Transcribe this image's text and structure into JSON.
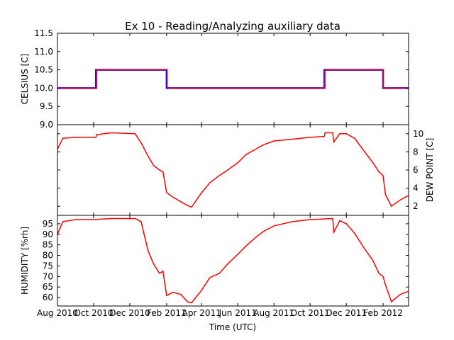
{
  "chart_data": {
    "type": "line",
    "title": "Ex 10 - Reading/Analyzing auxiliary data",
    "xlabel": "Time (UTC)",
    "x_range": [
      "2010-08-01",
      "2012-03-15"
    ],
    "x_ticks": [
      "Aug 2010",
      "Oct 2010",
      "Dec 2010",
      "Feb 2011",
      "Apr 2011",
      "Jun 2011",
      "Aug 2011",
      "Oct 2011",
      "Dec 2011",
      "Feb 2012"
    ],
    "panels": [
      {
        "ylabel": "CELSIUS [C]",
        "ylim": [
          9.0,
          11.5
        ],
        "y_ticks": [
          "9.0",
          "9.5",
          "10.0",
          "10.5",
          "11.0",
          "11.5"
        ],
        "y_axis_side": "left",
        "series": [
          {
            "color": "#0000ff",
            "x": [
              "2010-08-01",
              "2010-10-05",
              "2010-10-05",
              "2011-02-01",
              "2011-02-01",
              "2011-10-25",
              "2011-10-25",
              "2012-02-01",
              "2012-02-01",
              "2012-03-15"
            ],
            "y": [
              10.0,
              10.0,
              10.5,
              10.5,
              10.0,
              10.0,
              10.5,
              10.5,
              10.0,
              10.0
            ]
          },
          {
            "color": "#ff0000",
            "x": [
              "2010-08-01",
              "2010-10-06",
              "2010-10-06",
              "2011-02-02",
              "2011-02-02",
              "2011-10-26",
              "2011-10-26",
              "2012-02-01",
              "2012-02-01",
              "2012-03-15"
            ],
            "y": [
              10.0,
              10.0,
              10.5,
              10.5,
              10.0,
              10.0,
              10.5,
              10.5,
              10.0,
              10.0
            ]
          }
        ]
      },
      {
        "ylabel": "DEW POINT [C]",
        "ylim": [
          1.0,
          11.0
        ],
        "y_ticks": [
          "2",
          "4",
          "6",
          "8",
          "10"
        ],
        "y_axis_side": "right",
        "series": [
          {
            "color": "#ff0000",
            "x": [
              "2010-08-01",
              "2010-08-10",
              "2010-09-01",
              "2010-09-20",
              "2010-10-05",
              "2010-10-06",
              "2010-11-01",
              "2010-12-10",
              "2010-12-20",
              "2011-01-01",
              "2011-01-10",
              "2011-01-20",
              "2011-01-26",
              "2011-02-01",
              "2011-02-12",
              "2011-02-25",
              "2011-03-08",
              "2011-03-15",
              "2011-04-01",
              "2011-04-15",
              "2011-05-01",
              "2011-05-15",
              "2011-06-01",
              "2011-06-15",
              "2011-07-01",
              "2011-07-15",
              "2011-08-01",
              "2011-09-01",
              "2011-10-01",
              "2011-10-25",
              "2011-10-26",
              "2011-11-08",
              "2011-11-10",
              "2011-11-20",
              "2011-12-01",
              "2011-12-15",
              "2012-01-01",
              "2012-01-15",
              "2012-01-25",
              "2012-02-01",
              "2012-02-05",
              "2012-02-15",
              "2012-03-01",
              "2012-03-15"
            ],
            "y": [
              8.3,
              9.5,
              9.6,
              9.6,
              9.6,
              9.9,
              10.1,
              10.0,
              9.0,
              7.5,
              6.5,
              6.0,
              5.8,
              3.5,
              3.0,
              2.5,
              2.1,
              1.9,
              3.5,
              4.6,
              5.4,
              6.0,
              6.8,
              7.7,
              8.3,
              8.8,
              9.2,
              9.4,
              9.6,
              9.7,
              10.1,
              10.1,
              9.1,
              10.0,
              10.0,
              9.5,
              8.0,
              6.8,
              5.8,
              5.4,
              3.3,
              2.0,
              2.7,
              3.2
            ]
          }
        ]
      },
      {
        "ylabel": "HUMIDITY [%rh]",
        "ylim": [
          56,
          99
        ],
        "y_ticks": [
          "60",
          "65",
          "70",
          "75",
          "80",
          "85",
          "90",
          "95"
        ],
        "y_axis_side": "left",
        "series": [
          {
            "color": "#ff0000",
            "x": [
              "2010-08-01",
              "2010-08-10",
              "2010-09-01",
              "2010-10-01",
              "2010-11-01",
              "2010-12-10",
              "2010-12-20",
              "2011-01-01",
              "2011-01-10",
              "2011-01-20",
              "2011-01-26",
              "2011-02-01",
              "2011-02-12",
              "2011-02-25",
              "2011-03-08",
              "2011-03-15",
              "2011-04-01",
              "2011-04-15",
              "2011-05-01",
              "2011-05-15",
              "2011-06-01",
              "2011-06-15",
              "2011-07-01",
              "2011-07-15",
              "2011-08-01",
              "2011-09-01",
              "2011-10-01",
              "2011-11-08",
              "2011-11-10",
              "2011-11-20",
              "2011-12-01",
              "2011-12-15",
              "2012-01-01",
              "2012-01-15",
              "2012-01-25",
              "2012-02-01",
              "2012-02-05",
              "2012-02-15",
              "2012-03-01",
              "2012-03-15"
            ],
            "y": [
              90.0,
              96.0,
              97.0,
              97.0,
              97.5,
              97.5,
              96.0,
              82.0,
              76.0,
              71.5,
              72.5,
              61.0,
              62.5,
              61.5,
              58.0,
              57.5,
              63.5,
              69.5,
              71.5,
              76.0,
              80.5,
              84.5,
              88.5,
              91.5,
              94.0,
              96.0,
              97.0,
              97.5,
              91.0,
              96.5,
              95.0,
              90.5,
              83.0,
              77.5,
              71.5,
              70.0,
              66.0,
              58.0,
              61.5,
              63.0
            ]
          }
        ]
      }
    ]
  }
}
